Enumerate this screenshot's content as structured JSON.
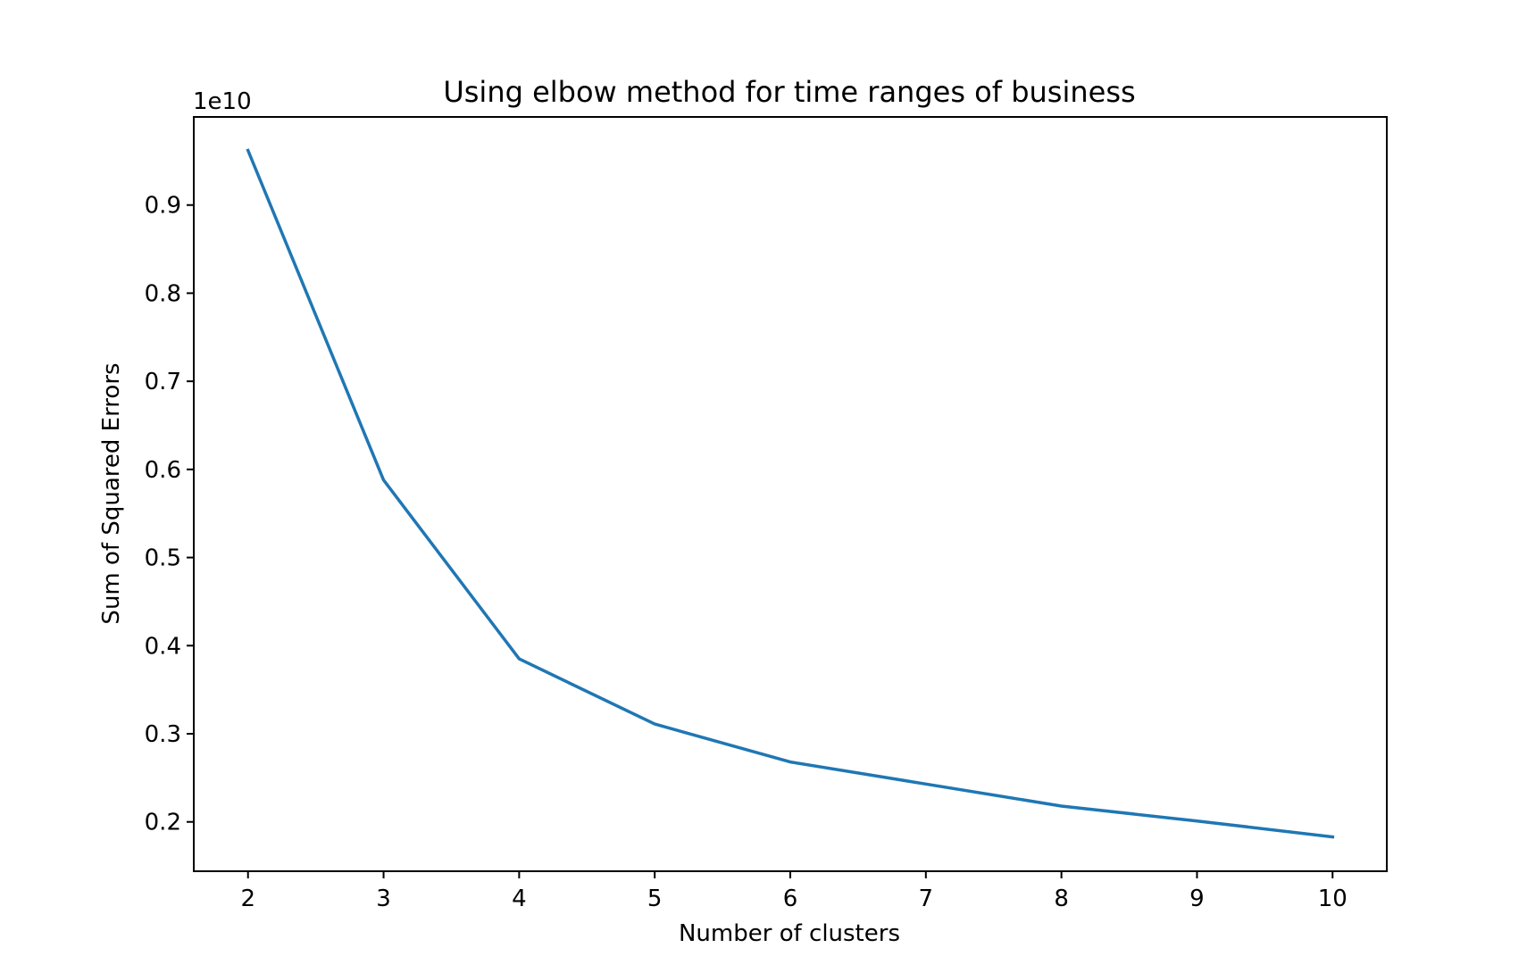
{
  "chart_data": {
    "type": "line",
    "title": "Using elbow method for time ranges of business",
    "xlabel": "Number of clusters",
    "ylabel": "Sum of Squared Errors",
    "y_offset_label": "1e10",
    "x": [
      2,
      3,
      4,
      5,
      6,
      7,
      8,
      9,
      10
    ],
    "series": [
      {
        "values": [
          0.962,
          0.588,
          0.385,
          0.311,
          0.268,
          0.243,
          0.218,
          0.201,
          0.183
        ]
      }
    ],
    "xticks": [
      2,
      3,
      4,
      5,
      6,
      7,
      8,
      9,
      10
    ],
    "xtick_labels": [
      "2",
      "3",
      "4",
      "5",
      "6",
      "7",
      "8",
      "9",
      "10"
    ],
    "yticks": [
      0.2,
      0.3,
      0.4,
      0.5,
      0.6,
      0.7,
      0.8,
      0.9
    ],
    "ytick_labels": [
      "0.2",
      "0.3",
      "0.4",
      "0.5",
      "0.6",
      "0.7",
      "0.8",
      "0.9"
    ],
    "xlim": [
      1.6,
      10.4
    ],
    "ylim": [
      0.144,
      1.0
    ],
    "grid": false,
    "legend": "none",
    "line_color": "#1f77b4"
  }
}
